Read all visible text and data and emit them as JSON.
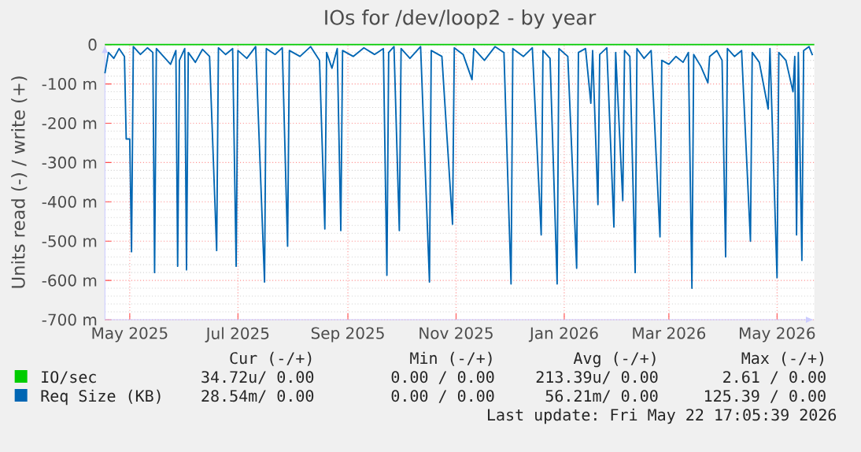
{
  "chart_data": {
    "type": "line",
    "title": "IOs for /dev/loop2 - by year",
    "ylabel": "Units read (-) / write (+)",
    "xlim": [
      "2025-04-17",
      "2026-05-22"
    ],
    "ylim": [
      -700,
      0
    ],
    "xticks": [
      {
        "value": "2025-05-01",
        "label": "May 2025"
      },
      {
        "value": "2025-07-01",
        "label": "Jul 2025"
      },
      {
        "value": "2025-09-01",
        "label": "Sep 2025"
      },
      {
        "value": "2025-11-01",
        "label": "Nov 2025"
      },
      {
        "value": "2026-01-01",
        "label": "Jan 2026"
      },
      {
        "value": "2026-03-01",
        "label": "Mar 2026"
      },
      {
        "value": "2026-05-01",
        "label": "May 2026"
      }
    ],
    "yticks": [
      {
        "value": -700,
        "label": "-700 m"
      },
      {
        "value": -600,
        "label": "-600 m"
      },
      {
        "value": -500,
        "label": "-500 m"
      },
      {
        "value": -400,
        "label": "-400 m"
      },
      {
        "value": -300,
        "label": "-300 m"
      },
      {
        "value": -200,
        "label": "-200 m"
      },
      {
        "value": -100,
        "label": "-100 m"
      },
      0
    ],
    "grid": true,
    "legend": "bottom left",
    "series": [
      {
        "name": "IO/sec",
        "color": "#00cc00",
        "x": [
          "2025-04-17",
          "2026-05-22"
        ],
        "values": [
          0,
          0
        ]
      },
      {
        "name": "Req Size (KB)",
        "color": "#0066b3",
        "x": [
          "2025-04-17",
          "2025-04-19",
          "2025-04-22",
          "2025-04-25",
          "2025-04-28",
          "2025-04-29",
          "2025-05-01",
          "2025-05-02",
          "2025-05-03",
          "2025-05-07",
          "2025-05-11",
          "2025-05-14",
          "2025-05-15",
          "2025-05-16",
          "2025-05-20",
          "2025-05-24",
          "2025-05-27",
          "2025-05-28",
          "2025-05-29",
          "2025-06-01",
          "2025-06-02",
          "2025-06-03",
          "2025-06-07",
          "2025-06-11",
          "2025-06-15",
          "2025-06-19",
          "2025-06-20",
          "2025-06-24",
          "2025-06-28",
          "2025-06-30",
          "2025-07-01",
          "2025-07-06",
          "2025-07-11",
          "2025-07-16",
          "2025-07-17",
          "2025-07-22",
          "2025-07-26",
          "2025-07-29",
          "2025-07-30",
          "2025-08-05",
          "2025-08-11",
          "2025-08-16",
          "2025-08-19",
          "2025-08-20",
          "2025-08-23",
          "2025-08-26",
          "2025-08-28",
          "2025-08-29",
          "2025-09-04",
          "2025-09-10",
          "2025-09-16",
          "2025-09-21",
          "2025-09-23",
          "2025-09-24",
          "2025-09-27",
          "2025-09-30",
          "2025-10-01",
          "2025-10-06",
          "2025-10-12",
          "2025-10-17",
          "2025-10-18",
          "2025-10-24",
          "2025-10-30",
          "2025-10-31",
          "2025-11-05",
          "2025-11-10",
          "2025-11-11",
          "2025-11-17",
          "2025-11-23",
          "2025-11-28",
          "2025-12-02",
          "2025-12-03",
          "2025-12-09",
          "2025-12-14",
          "2025-12-19",
          "2025-12-20",
          "2025-12-24",
          "2025-12-28",
          "2025-12-29",
          "2026-01-03",
          "2026-01-08",
          "2026-01-09",
          "2026-01-13",
          "2026-01-16",
          "2026-01-17",
          "2026-01-20",
          "2026-01-21",
          "2026-01-25",
          "2026-01-29",
          "2026-01-30",
          "2026-02-03",
          "2026-02-04",
          "2026-02-07",
          "2026-02-10",
          "2026-02-11",
          "2026-02-15",
          "2026-02-19",
          "2026-02-24",
          "2026-02-25",
          "2026-03-01",
          "2026-03-05",
          "2026-03-09",
          "2026-03-12",
          "2026-03-14",
          "2026-03-15",
          "2026-03-19",
          "2026-03-23",
          "2026-03-24",
          "2026-03-28",
          "2026-03-31",
          "2026-04-02",
          "2026-04-03",
          "2026-04-07",
          "2026-04-11",
          "2026-04-16",
          "2026-04-17",
          "2026-04-21",
          "2026-04-26",
          "2026-04-27",
          "2026-05-01",
          "2026-05-02",
          "2026-05-06",
          "2026-05-10",
          "2026-05-11",
          "2026-05-12",
          "2026-05-13",
          "2026-05-15",
          "2026-05-16",
          "2026-05-19",
          "2026-05-21"
        ],
        "values": [
          -73,
          -20,
          -35,
          -10,
          -30,
          -240,
          -240,
          -527,
          -5,
          -25,
          -8,
          -20,
          -580,
          -10,
          -30,
          -50,
          -15,
          -564,
          -40,
          -10,
          -573,
          -20,
          -45,
          -12,
          -30,
          -524,
          -8,
          -25,
          -10,
          -564,
          -15,
          -35,
          -5,
          -604,
          -10,
          -25,
          -8,
          -513,
          -15,
          -30,
          -5,
          -40,
          -469,
          -20,
          -60,
          -10,
          -473,
          -15,
          -30,
          -8,
          -25,
          -10,
          -587,
          -20,
          -5,
          -473,
          -10,
          -35,
          -5,
          -604,
          -15,
          -30,
          -457,
          -8,
          -25,
          -89,
          -10,
          -40,
          -5,
          -20,
          -609,
          -10,
          -30,
          -8,
          -484,
          -15,
          -35,
          -609,
          -10,
          -30,
          -569,
          -20,
          -10,
          -149,
          -15,
          -407,
          -25,
          -8,
          -464,
          -20,
          -397,
          -15,
          -30,
          -580,
          -10,
          -35,
          -15,
          -489,
          -40,
          -50,
          -30,
          -45,
          -20,
          -620,
          -25,
          -55,
          -97,
          -30,
          -15,
          -40,
          -540,
          -10,
          -30,
          -15,
          -500,
          -20,
          -45,
          -164,
          -10,
          -593,
          -20,
          -40,
          -120,
          -30,
          -484,
          -20,
          -549,
          -15,
          -5,
          -27
        ]
      }
    ],
    "annotations": [
      "Cur (-/+)",
      "Min (-/+)",
      "Avg (-/+)",
      "Max (-/+)",
      "34.72u/  0.00",
      "0.00 /  0.00",
      "213.39u/  0.00",
      "2.61 /  0.00",
      "28.54m/  0.00",
      "0.00 /  0.00",
      "56.21m/  0.00",
      "125.39 /  0.00",
      "Last update: Fri May 22 17:05:39 2026"
    ]
  }
}
